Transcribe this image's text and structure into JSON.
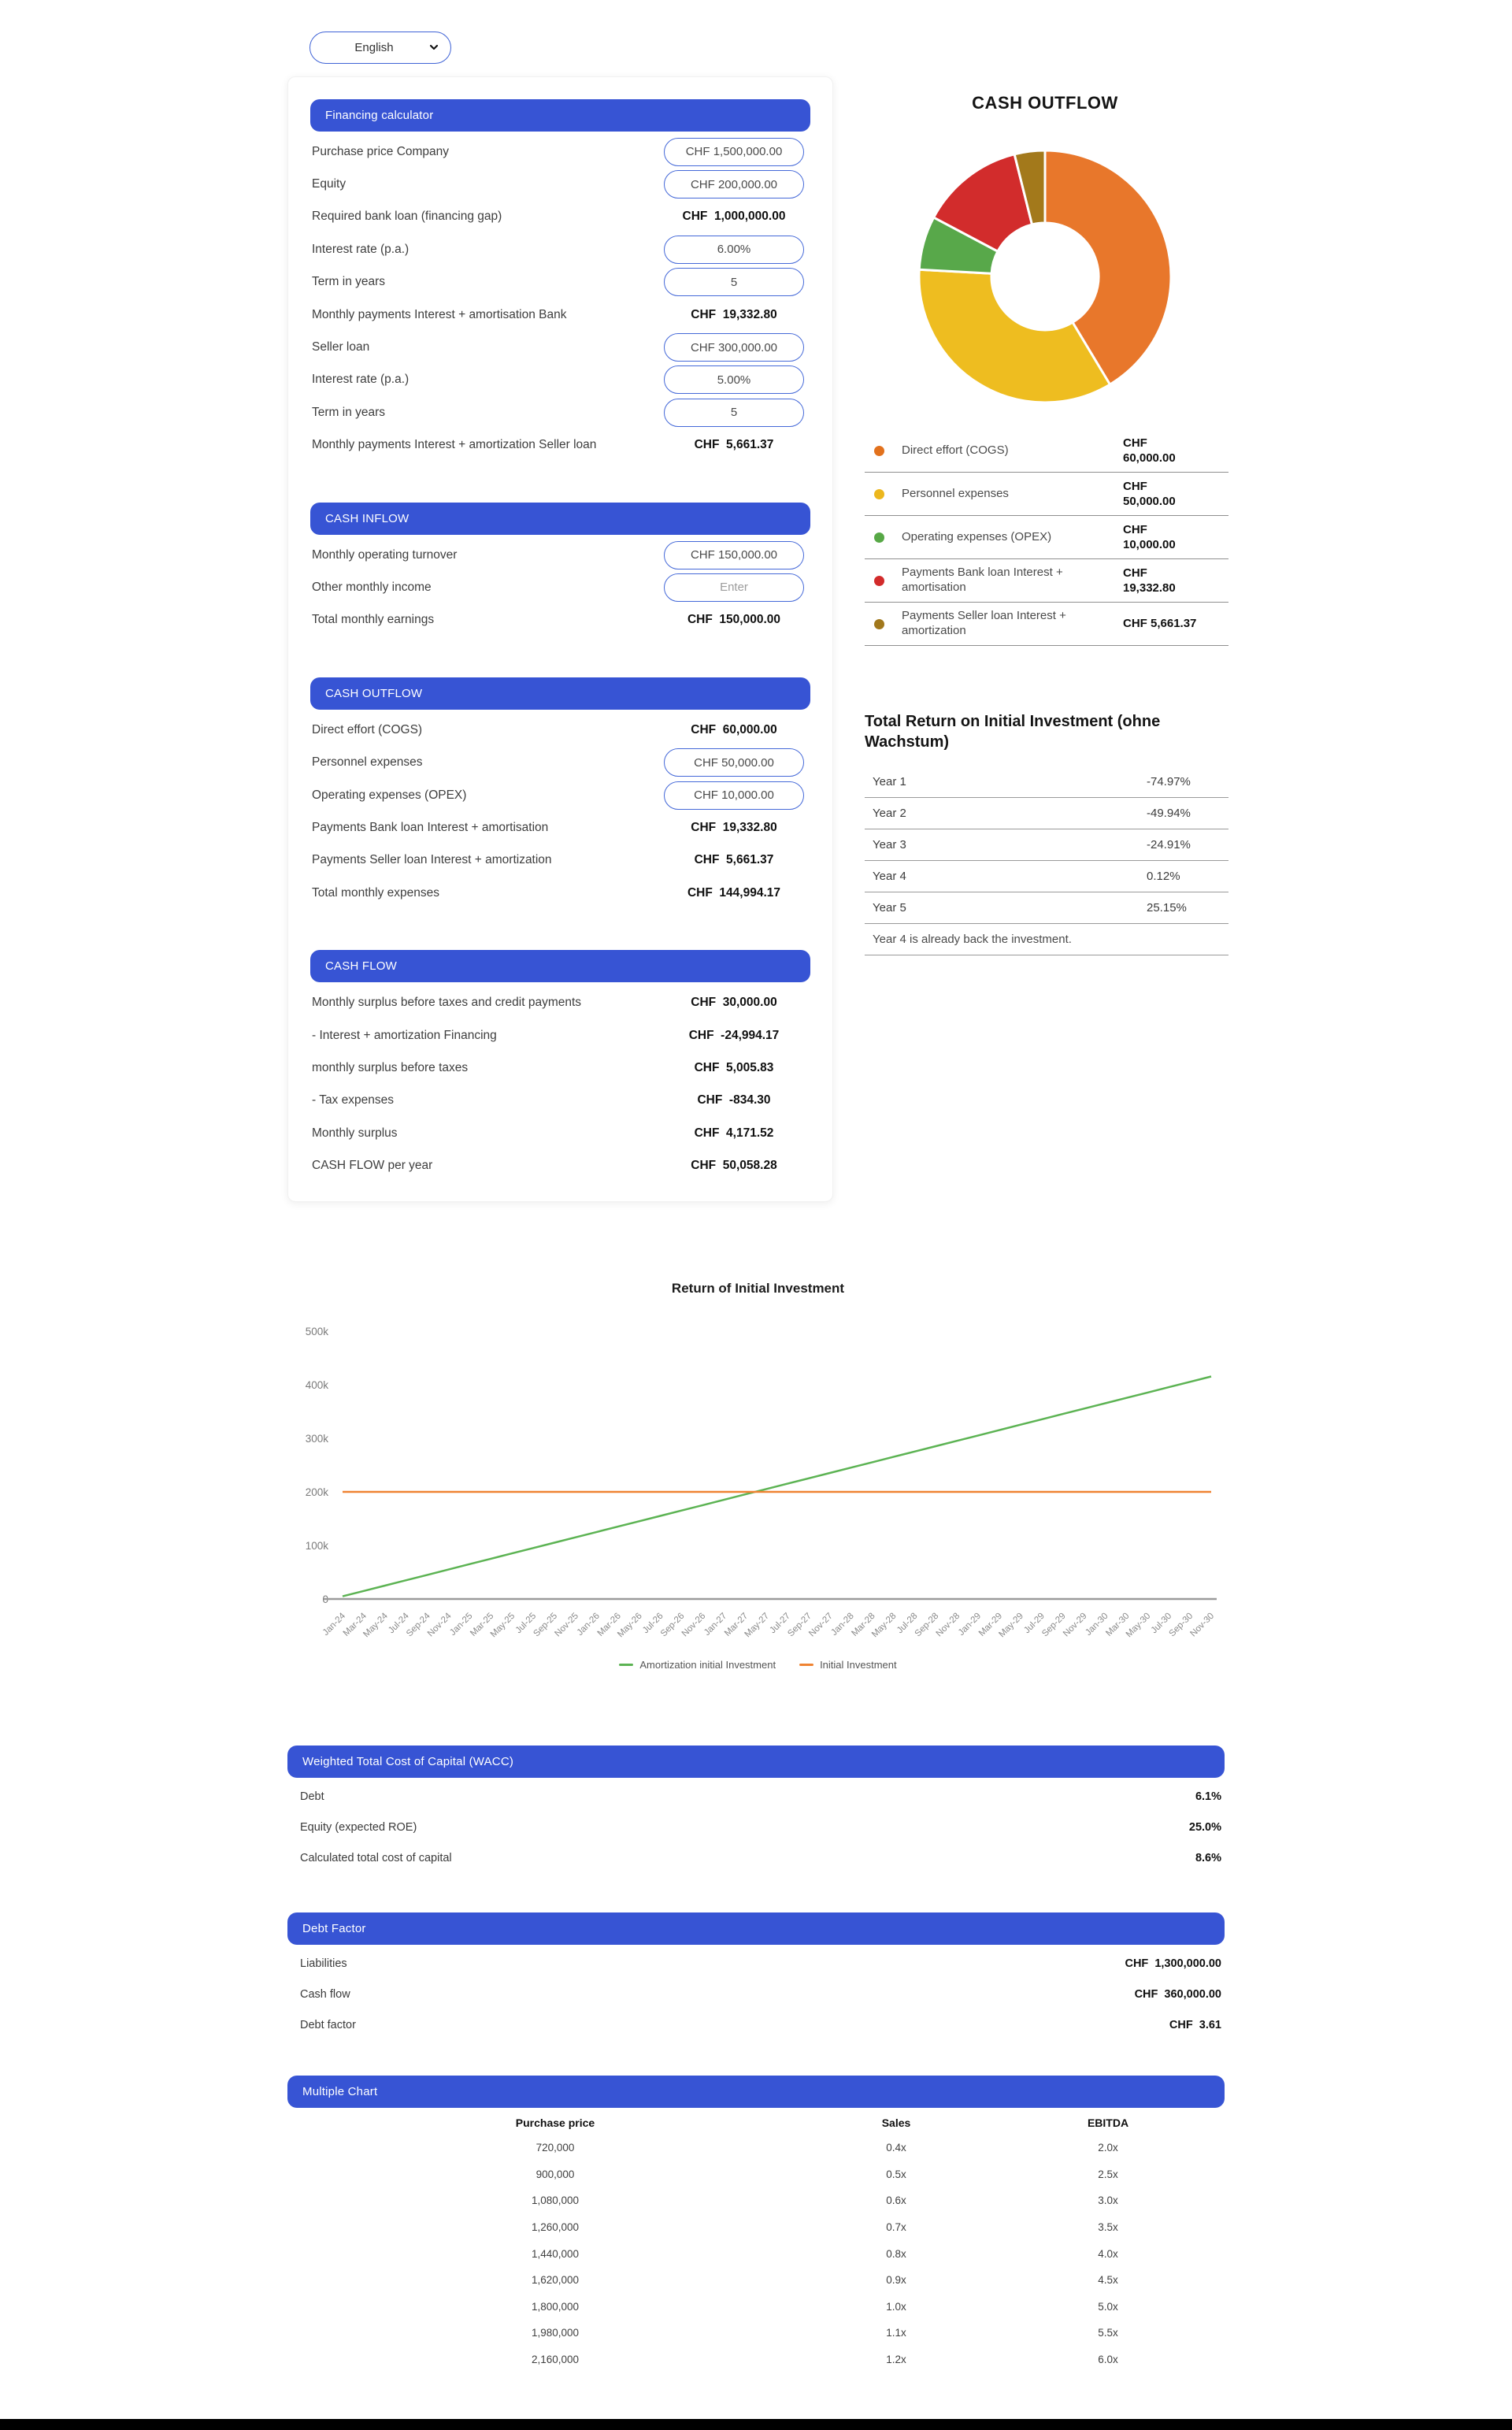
{
  "language_selector": {
    "selected": "English"
  },
  "calculator_card": {
    "sections": [
      {
        "title": "Financing calculator",
        "rows": [
          {
            "label": "Purchase price Company",
            "type": "input",
            "value": "CHF 1,500,000.00"
          },
          {
            "label": "Equity",
            "type": "input",
            "value": "CHF 200,000.00"
          },
          {
            "label": "Required bank loan (financing gap)",
            "type": "static",
            "value": "CHF  1,000,000.00"
          },
          {
            "label": "Interest rate (p.a.)",
            "type": "input",
            "value": "6.00%"
          },
          {
            "label": "Term in years",
            "type": "input",
            "value": "5"
          },
          {
            "label": "Monthly payments Interest + amortisation Bank",
            "type": "static",
            "value": "CHF  19,332.80"
          },
          {
            "label": "Seller loan",
            "type": "input",
            "value": "CHF 300,000.00"
          },
          {
            "label": "Interest rate (p.a.)",
            "type": "input",
            "value": "5.00%"
          },
          {
            "label": "Term in years",
            "type": "input",
            "value": "5"
          },
          {
            "label": "Monthly payments Interest + amortization Seller loan",
            "type": "static",
            "value": "CHF  5,661.37"
          }
        ]
      },
      {
        "title": "CASH INFLOW",
        "rows": [
          {
            "label": "Monthly operating turnover",
            "type": "input",
            "value": "CHF 150,000.00"
          },
          {
            "label": "Other monthly income",
            "type": "input",
            "value": "",
            "placeholder": "Enter"
          },
          {
            "label": "Total monthly earnings",
            "type": "static",
            "value": "CHF  150,000.00"
          }
        ]
      },
      {
        "title": "CASH OUTFLOW",
        "rows": [
          {
            "label": "Direct effort (COGS)",
            "type": "static",
            "value": "CHF  60,000.00"
          },
          {
            "label": "Personnel expenses",
            "type": "input",
            "value": "CHF 50,000.00"
          },
          {
            "label": "Operating expenses (OPEX)",
            "type": "input",
            "value": "CHF 10,000.00"
          },
          {
            "label": "Payments Bank loan Interest + amortisation",
            "type": "static",
            "value": "CHF  19,332.80"
          },
          {
            "label": "Payments Seller loan Interest + amortization",
            "type": "static",
            "value": "CHF  5,661.37"
          },
          {
            "label": "Total monthly expenses",
            "type": "static",
            "value": "CHF  144,994.17"
          }
        ]
      },
      {
        "title": "CASH FLOW",
        "rows": [
          {
            "label": "Monthly surplus before taxes and credit payments",
            "type": "static",
            "value": "CHF  30,000.00"
          },
          {
            "label": "- Interest + amortization Financing",
            "type": "static",
            "value": "CHF  -24,994.17"
          },
          {
            "label": "monthly surplus before taxes",
            "type": "static",
            "value": "CHF  5,005.83"
          },
          {
            "label": "- Tax expenses",
            "type": "static",
            "value": "CHF  -834.30"
          },
          {
            "label": "Monthly surplus",
            "type": "static",
            "value": "CHF  4,171.52"
          },
          {
            "label": "CASH FLOW per year",
            "type": "static",
            "value": "CHF  50,058.28"
          }
        ]
      }
    ]
  },
  "cash_outflow_legend": [
    {
      "label": "Direct effort (COGS)",
      "value": "CHF\n60,000.00",
      "color": "#e2711d"
    },
    {
      "label": "Personnel expenses",
      "value": "CHF\n50,000.00",
      "color": "#ecb71d"
    },
    {
      "label": "Operating expenses (OPEX)",
      "value": "CHF\n10,000.00",
      "color": "#57a846"
    },
    {
      "label": "Payments Bank loan Interest + amortisation",
      "value": "CHF\n19,332.80",
      "color": "#d22b2b"
    },
    {
      "label": "Payments Seller loan Interest + amortization",
      "value": "CHF 5,661.37",
      "color": "#a1781c"
    }
  ],
  "total_return": {
    "title": "Total Return on Initial Investment (ohne Wachstum)",
    "rows": [
      {
        "label": "Year 1",
        "value": "-74.97%"
      },
      {
        "label": "Year 2",
        "value": "-49.94%"
      },
      {
        "label": "Year 3",
        "value": "-24.91%"
      },
      {
        "label": "Year 4",
        "value": "0.12%"
      },
      {
        "label": "Year 5",
        "value": "25.15%"
      }
    ],
    "note": "Year 4 is already back the investment."
  },
  "chart_data": [
    {
      "type": "pie",
      "donut": true,
      "title": "CASH OUTFLOW",
      "labels": [
        "Direct effort (COGS)",
        "Personnel expenses",
        "Operating expenses (OPEX)",
        "Payments Bank loan Interest + amortisation",
        "Payments Seller loan Interest + amortization"
      ],
      "values": [
        60000,
        50000,
        10000,
        19332.8,
        5661.37
      ],
      "value_labels": [
        "CHF 60,000.00",
        "CHF 50,000.00",
        "CHF 10,000.00",
        "CHF 19,332.80",
        "CHF 5,661.37"
      ],
      "colors": [
        "#e8772b",
        "#eebd20",
        "#58a84a",
        "#d22c2c",
        "#a3791b"
      ],
      "legend_position": "bottom"
    },
    {
      "type": "line",
      "title": "Return of Initial Investment",
      "x": [
        "Jan-24",
        "Mar-24",
        "May-24",
        "Jul-24",
        "Sep-24",
        "Nov-24",
        "Jan-25",
        "Mar-25",
        "May-25",
        "Jul-25",
        "Sep-25",
        "Nov-25",
        "Jan-26",
        "Mar-26",
        "May-26",
        "Jul-26",
        "Sep-26",
        "Nov-26",
        "Jan-27",
        "Mar-27",
        "May-27",
        "Jul-27",
        "Sep-27",
        "Nov-27",
        "Jan-28",
        "Mar-28",
        "May-28",
        "Jul-28",
        "Sep-28",
        "Nov-28",
        "Jan-29",
        "Mar-29",
        "May-29",
        "Jul-29",
        "Sep-29",
        "Nov-29",
        "Jan-30",
        "Mar-30",
        "May-30",
        "Jul-30",
        "Sep-30",
        "Nov-30"
      ],
      "series": [
        {
          "name": "Amortization initial Investment",
          "color": "#5cb353",
          "values": [
            5005.83,
            15017.49,
            25029.15,
            35040.81,
            45052.47,
            55064.13,
            65075.79,
            75087.45,
            85099.11,
            95110.77,
            105122.43,
            115134.09,
            125145.75,
            135157.41,
            145169.07,
            155180.73,
            165192.39,
            175204.05,
            185215.71,
            195227.37,
            205239.03,
            215250.69,
            225262.35,
            235274.01,
            245285.67,
            255297.33,
            265308.99,
            275320.65,
            285332.31,
            295343.97,
            305355.63,
            315367.29,
            325378.95,
            335390.61,
            345402.27,
            355413.93,
            365425.59,
            375437.25,
            385448.91,
            395460.57,
            405472.23,
            415483.89
          ]
        },
        {
          "name": "Initial Investment",
          "color": "#ef8332",
          "values": [
            200000,
            200000,
            200000,
            200000,
            200000,
            200000,
            200000,
            200000,
            200000,
            200000,
            200000,
            200000,
            200000,
            200000,
            200000,
            200000,
            200000,
            200000,
            200000,
            200000,
            200000,
            200000,
            200000,
            200000,
            200000,
            200000,
            200000,
            200000,
            200000,
            200000,
            200000,
            200000,
            200000,
            200000,
            200000,
            200000,
            200000,
            200000,
            200000,
            200000,
            200000,
            200000
          ]
        }
      ],
      "ylim": [
        0,
        500000
      ],
      "yticks": [
        "0",
        "100k",
        "200k",
        "300k",
        "400k",
        "500k"
      ],
      "grid": false,
      "legend_position": "bottom"
    }
  ],
  "wacc": {
    "title": "Weighted Total Cost of Capital (WACC)",
    "rows": [
      {
        "label": "Debt",
        "value": "6.1%"
      },
      {
        "label": "Equity (expected ROE)",
        "value": "25.0%"
      },
      {
        "label": "Calculated total cost of capital",
        "value": "8.6%"
      }
    ]
  },
  "debt_factor": {
    "title": "Debt Factor",
    "rows": [
      {
        "label": "Liabilities",
        "value": "CHF  1,300,000.00"
      },
      {
        "label": "Cash flow",
        "value": "CHF  360,000.00"
      },
      {
        "label": "Debt factor",
        "value": "CHF  3.61"
      }
    ]
  },
  "multiple_chart": {
    "title": "Multiple Chart",
    "columns": [
      "Purchase price",
      "Sales",
      "EBITDA"
    ],
    "rows": [
      [
        "720,000",
        "0.4x",
        "2.0x"
      ],
      [
        "900,000",
        "0.5x",
        "2.5x"
      ],
      [
        "1,080,000",
        "0.6x",
        "3.0x"
      ],
      [
        "1,260,000",
        "0.7x",
        "3.5x"
      ],
      [
        "1,440,000",
        "0.8x",
        "4.0x"
      ],
      [
        "1,620,000",
        "0.9x",
        "4.5x"
      ],
      [
        "1,800,000",
        "1.0x",
        "5.0x"
      ],
      [
        "1,980,000",
        "1.1x",
        "5.5x"
      ],
      [
        "2,160,000",
        "1.2x",
        "6.0x"
      ]
    ]
  },
  "colors": {
    "primary_blue": "#3754d4",
    "input_border": "#4468d8"
  }
}
